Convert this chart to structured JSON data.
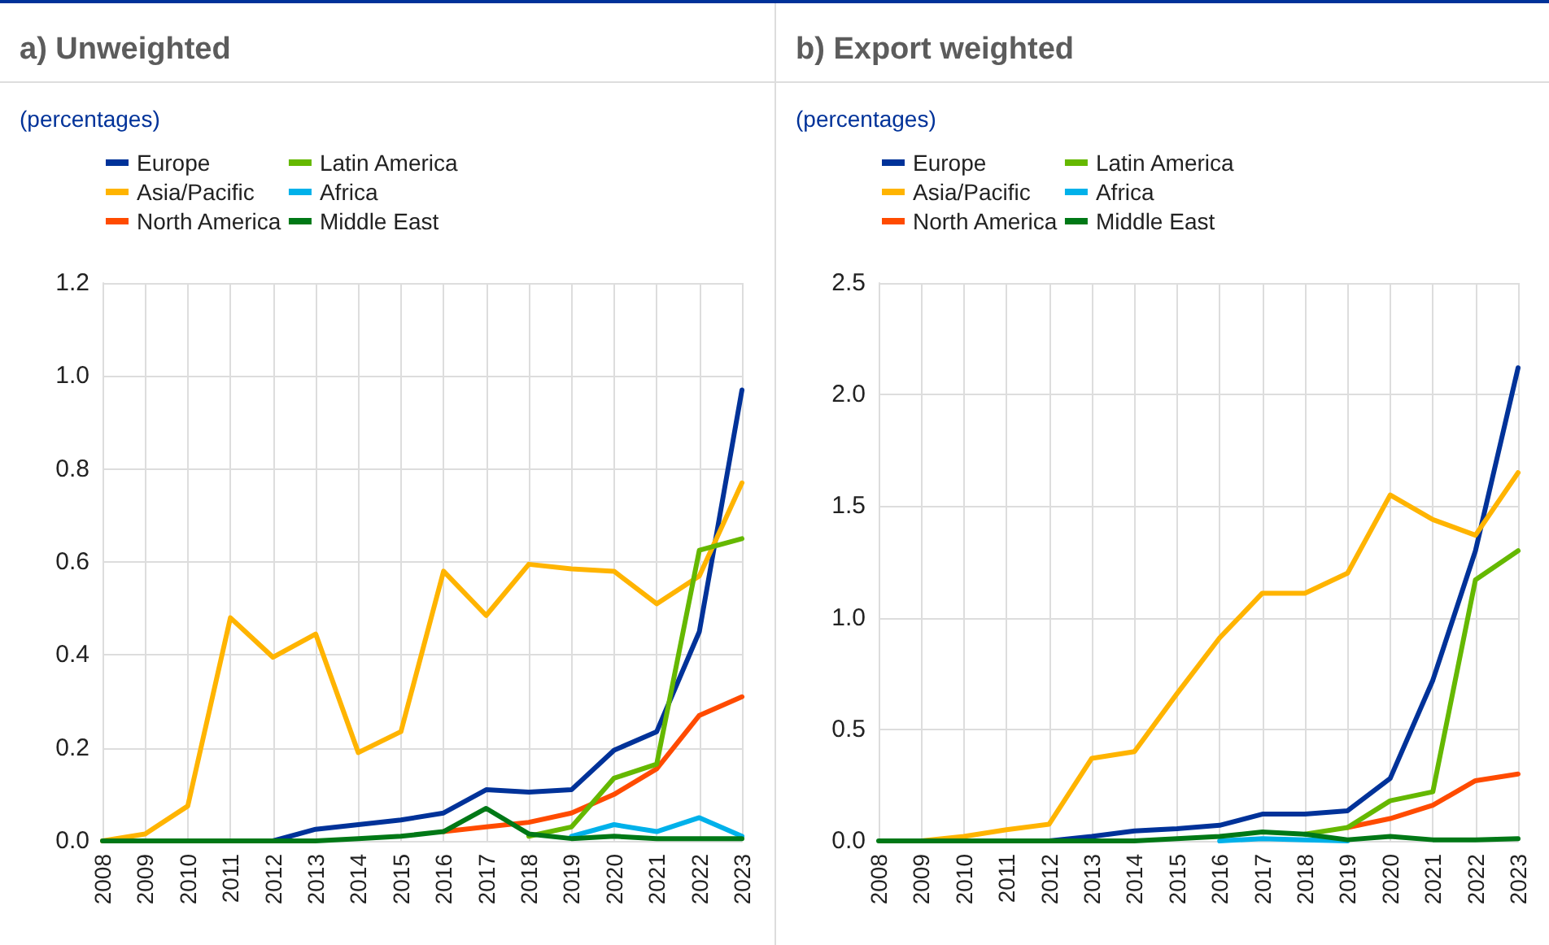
{
  "chart_data": [
    {
      "type": "line",
      "title": "a) Unweighted",
      "subtitle": "(percentages)",
      "categories": [
        "2008",
        "2009",
        "2010",
        "2011",
        "2012",
        "2013",
        "2014",
        "2015",
        "2016",
        "2017",
        "2018",
        "2019",
        "2020",
        "2021",
        "2022",
        "2023"
      ],
      "ylim": [
        0,
        1.2
      ],
      "yticks": [
        {
          "value": 0,
          "label": "0.0"
        },
        0.2,
        0.4,
        0.6,
        0.8,
        {
          "value": 1,
          "label": "1.0"
        },
        1.2
      ],
      "grid": true,
      "legend": "top left",
      "marker": "none",
      "line_style": "solid",
      "series": [
        {
          "name": "Europe",
          "color": "#003299",
          "values": [
            null,
            null,
            null,
            null,
            0,
            0.025,
            0.035,
            0.045,
            0.06,
            0.11,
            0.105,
            0.11,
            0.195,
            0.235,
            0.45,
            0.97
          ]
        },
        {
          "name": "Asia/Pacific",
          "color": "#ffb400",
          "values": [
            0,
            0.015,
            0.075,
            0.48,
            0.395,
            0.445,
            0.19,
            0.235,
            0.58,
            0.485,
            0.595,
            0.585,
            0.58,
            0.51,
            0.57,
            0.77
          ]
        },
        {
          "name": "North America",
          "color": "#ff4b00",
          "values": [
            null,
            null,
            null,
            null,
            null,
            null,
            null,
            null,
            0.02,
            0.03,
            0.04,
            0.06,
            0.1,
            0.155,
            0.27,
            0.31
          ]
        },
        {
          "name": "Latin America",
          "color": "#65b800",
          "values": [
            null,
            null,
            null,
            null,
            null,
            null,
            null,
            null,
            null,
            null,
            0.01,
            0.03,
            0.135,
            0.165,
            0.625,
            0.65
          ]
        },
        {
          "name": "Africa",
          "color": "#00b1ea",
          "values": [
            null,
            null,
            null,
            null,
            null,
            null,
            null,
            null,
            null,
            null,
            null,
            0.01,
            0.035,
            0.02,
            0.05,
            0.01
          ]
        },
        {
          "name": "Middle East",
          "color": "#007816",
          "values": [
            0,
            0,
            0,
            0,
            0,
            0,
            0.005,
            0.01,
            0.02,
            0.07,
            0.015,
            0.005,
            0.01,
            0.005,
            0.005,
            0.005
          ]
        }
      ]
    },
    {
      "type": "line",
      "title": "b) Export weighted",
      "subtitle": "(percentages)",
      "categories": [
        "2008",
        "2009",
        "2010",
        "2011",
        "2012",
        "2013",
        "2014",
        "2015",
        "2016",
        "2017",
        "2018",
        "2019",
        "2020",
        "2021",
        "2022",
        "2023"
      ],
      "ylim": [
        0,
        2.5
      ],
      "yticks": [
        {
          "value": 0,
          "label": "0.0"
        },
        0.5,
        {
          "value": 1,
          "label": "1.0"
        },
        1.5,
        {
          "value": 2,
          "label": "2.0"
        },
        2.5
      ],
      "grid": true,
      "legend": "top left",
      "marker": "none",
      "line_style": "solid",
      "series": [
        {
          "name": "Europe",
          "color": "#003299",
          "values": [
            null,
            null,
            null,
            null,
            0,
            0.02,
            0.045,
            0.055,
            0.07,
            0.12,
            0.12,
            0.135,
            0.28,
            0.72,
            1.3,
            2.12
          ]
        },
        {
          "name": "Asia/Pacific",
          "color": "#ffb400",
          "values": [
            null,
            0,
            0.02,
            0.05,
            0.075,
            0.37,
            0.4,
            0.66,
            0.91,
            1.11,
            1.11,
            1.2,
            1.55,
            1.44,
            1.37,
            1.65
          ]
        },
        {
          "name": "North America",
          "color": "#ff4b00",
          "values": [
            null,
            null,
            null,
            null,
            null,
            null,
            null,
            null,
            null,
            null,
            null,
            0.06,
            0.1,
            0.16,
            0.27,
            0.3
          ]
        },
        {
          "name": "Latin America",
          "color": "#65b800",
          "values": [
            null,
            null,
            null,
            null,
            null,
            null,
            null,
            null,
            null,
            null,
            0.03,
            0.06,
            0.18,
            0.22,
            1.17,
            1.3
          ]
        },
        {
          "name": "Africa",
          "color": "#00b1ea",
          "values": [
            null,
            null,
            null,
            null,
            null,
            null,
            null,
            null,
            0,
            0.01,
            0.005,
            0,
            null,
            null,
            null,
            null
          ]
        },
        {
          "name": "Middle East",
          "color": "#007816",
          "values": [
            0,
            0,
            0,
            0,
            0,
            0,
            0,
            0.01,
            0.02,
            0.04,
            0.03,
            0.005,
            0.02,
            0.005,
            0.005,
            0.01
          ]
        }
      ]
    }
  ]
}
